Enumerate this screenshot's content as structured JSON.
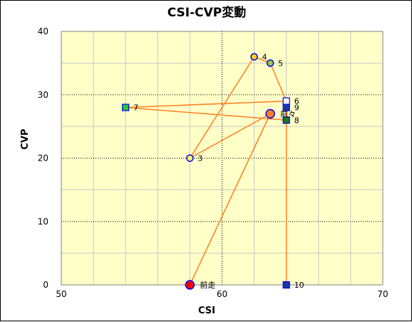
{
  "chart_data": {
    "type": "scatter",
    "title": "CSI-CVP変動",
    "xlabel": "CSI",
    "ylabel": "CVP",
    "xlim": [
      50,
      70
    ],
    "ylim": [
      0,
      40
    ],
    "xticks": [
      50,
      60,
      70
    ],
    "yticks": [
      0,
      10,
      20,
      30,
      40
    ],
    "grid": true,
    "colors": {
      "plot_background": "#ffffc8",
      "grid_major": "#000000",
      "grid_minor": "#c8c8c8",
      "path_line": "#ff7f1e",
      "marker_outline": "#0000ff"
    },
    "path_order": [
      "前走",
      "前々",
      "3",
      "4",
      "5",
      "6",
      "7",
      "8",
      "9",
      "10"
    ],
    "points": [
      {
        "label": "前走",
        "x": 58.0,
        "y": 0.0,
        "marker": "circle",
        "size": "large",
        "fill": "#ff0000",
        "stroke": "#0000ff"
      },
      {
        "label": "前々",
        "x": 63.0,
        "y": 27.0,
        "marker": "circle",
        "size": "large",
        "fill": "#ff7f1e",
        "stroke": "#0000ff"
      },
      {
        "label": "3",
        "x": 58.0,
        "y": 20.0,
        "marker": "circle",
        "size": "small",
        "fill": "#ffff66",
        "stroke": "#0000ff"
      },
      {
        "label": "4",
        "x": 62.0,
        "y": 36.0,
        "marker": "circle",
        "size": "small",
        "fill": "#ffd200",
        "stroke": "#0000ff"
      },
      {
        "label": "5",
        "x": 63.0,
        "y": 35.0,
        "marker": "circle",
        "size": "small",
        "fill": "#9acd32",
        "stroke": "#0000ff"
      },
      {
        "label": "6",
        "x": 64.0,
        "y": 29.0,
        "marker": "square",
        "size": "small",
        "fill": "#ffffff",
        "stroke": "#0000ff"
      },
      {
        "label": "7",
        "x": 54.0,
        "y": 28.0,
        "marker": "square",
        "size": "small",
        "fill": "#22cc22",
        "stroke": "#0000ff"
      },
      {
        "label": "8",
        "x": 64.0,
        "y": 26.0,
        "marker": "square",
        "size": "small",
        "fill": "#1a7a1a",
        "stroke": "#0000ff"
      },
      {
        "label": "9",
        "x": 64.0,
        "y": 28.0,
        "marker": "square",
        "size": "small",
        "fill": "#1a3aa0",
        "stroke": "#0000ff"
      },
      {
        "label": "10",
        "x": 64.0,
        "y": 0.0,
        "marker": "square",
        "size": "small",
        "fill": "#1a3aa0",
        "stroke": "#0000ff"
      }
    ]
  }
}
